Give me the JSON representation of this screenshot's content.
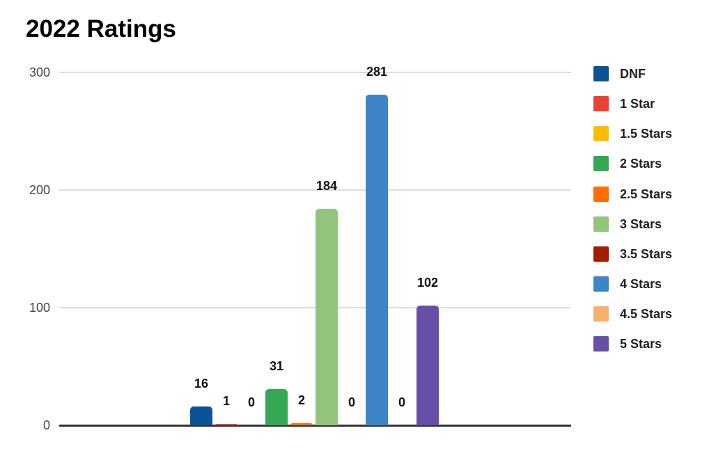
{
  "chart_data": {
    "type": "bar",
    "title": "2022 Ratings",
    "categories": [
      "DNF",
      "1 Star",
      "1.5 Stars",
      "2 Stars",
      "2.5 Stars",
      "3 Stars",
      "3.5 Stars",
      "4 Stars",
      "4.5 Stars",
      "5 Stars"
    ],
    "values": [
      16,
      1,
      0,
      31,
      2,
      184,
      0,
      281,
      0,
      102
    ],
    "value_labels": [
      "16",
      "1",
      "0",
      "31",
      "2",
      "184",
      "0",
      "281",
      "0",
      "102"
    ],
    "colors": [
      "#0b5394",
      "#ea4335",
      "#fbbc04",
      "#34a853",
      "#ff6d01",
      "#93c47d",
      "#a61c00",
      "#3d85c6",
      "#f6b26b",
      "#674ea7"
    ],
    "xlabel": "",
    "ylabel": "",
    "ylim": [
      0,
      300
    ],
    "y_ticks": [
      0,
      100,
      200,
      300
    ],
    "y_tick_labels": [
      "0",
      "100",
      "200",
      "300"
    ],
    "grid": true,
    "data_labels": true,
    "legend_position": "right"
  },
  "colors": {
    "background": "#ffffff",
    "gridline": "#dcdcdc",
    "axis_line": "#333333",
    "title_text": "#000000",
    "tick_text": "#444444",
    "value_text": "#0f0f0f",
    "legend_text": "#1f1f1f"
  }
}
